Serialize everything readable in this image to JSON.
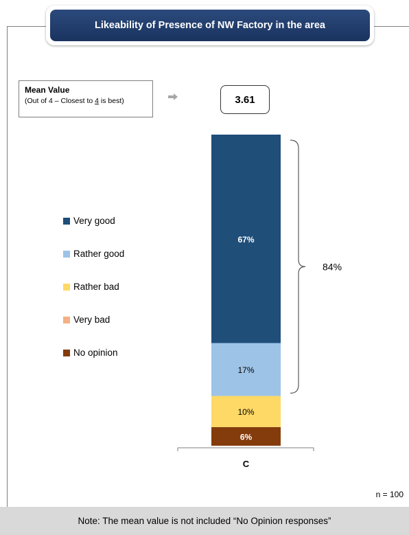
{
  "title": "Likeability of Presence of NW Factory in the area",
  "mean_box": {
    "heading": "Mean Value",
    "sub_prefix": "(Out of 4 – Closest to ",
    "sub_underlined": "4",
    "sub_suffix": " is best)",
    "value": "3.61"
  },
  "icons": {
    "arrow": "right-arrow-icon",
    "brace": "right-brace-icon"
  },
  "sample_size": "n = 100",
  "footer_note": "Note: The mean value is not included “No Opinion responses”",
  "chart_data": {
    "type": "bar",
    "stacked": true,
    "categories": [
      "C"
    ],
    "series": [
      {
        "name": "Very good",
        "values": [
          67
        ],
        "label": "67%",
        "color": "#1f4e79"
      },
      {
        "name": "Rather good",
        "values": [
          17
        ],
        "label": "17%",
        "color": "#9dc3e6"
      },
      {
        "name": "Rather bad",
        "values": [
          10
        ],
        "label": "10%",
        "color": "#ffd966"
      },
      {
        "name": "Very bad",
        "values": [
          0
        ],
        "label": "",
        "color": "#f4b183"
      },
      {
        "name": "No opinion",
        "values": [
          6
        ],
        "label": "6%",
        "color": "#843c0c"
      }
    ],
    "bracket": {
      "covers": [
        "Very good",
        "Rather good"
      ],
      "label": "84%"
    },
    "ylim": [
      0,
      100
    ],
    "legend_placement": "left",
    "grid": false
  }
}
